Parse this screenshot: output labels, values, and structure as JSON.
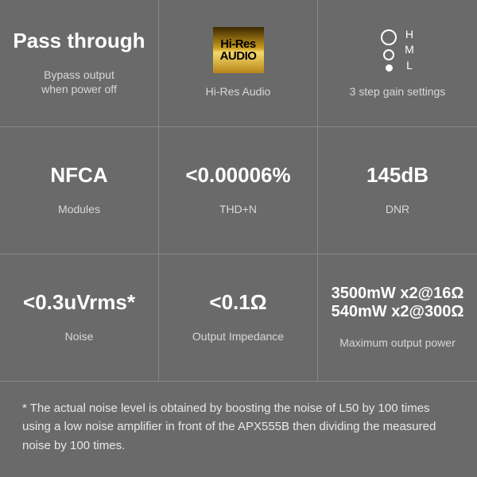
{
  "cells": [
    {
      "main": "Pass through",
      "sub": "Bypass output\nwhen power off",
      "icon": null
    },
    {
      "main": "",
      "sub": "Hi-Res Audio",
      "icon": "hires"
    },
    {
      "main": "",
      "sub": "3 step gain settings",
      "icon": "gain"
    },
    {
      "main": "NFCA",
      "sub": "Modules",
      "icon": null
    },
    {
      "main": "<0.00006%",
      "sub": "THD+N",
      "icon": null
    },
    {
      "main": "145dB",
      "sub": "DNR",
      "icon": null
    },
    {
      "main": "<0.3uVrms*",
      "sub": "Noise",
      "icon": null
    },
    {
      "main": "<0.1Ω",
      "sub": "Output Impedance",
      "icon": null
    },
    {
      "main": "3500mW x2@16Ω\n540mW x2@300Ω",
      "sub": "Maximum output power",
      "icon": null,
      "smaller": true
    }
  ],
  "hires": {
    "line1": "Hi-Res",
    "line2": "AUDIO"
  },
  "gain": {
    "labels": [
      "H",
      "M",
      "L"
    ]
  },
  "footnote": "* The actual noise level is obtained by boosting the noise of L50 by 100 times using a low noise amplifier in front of the APX555B then dividing the measured noise by 100 times.",
  "colors": {
    "background": "#6a6a6a",
    "border": "#888888",
    "text_main": "#ffffff",
    "text_sub": "#d8d8d8"
  }
}
